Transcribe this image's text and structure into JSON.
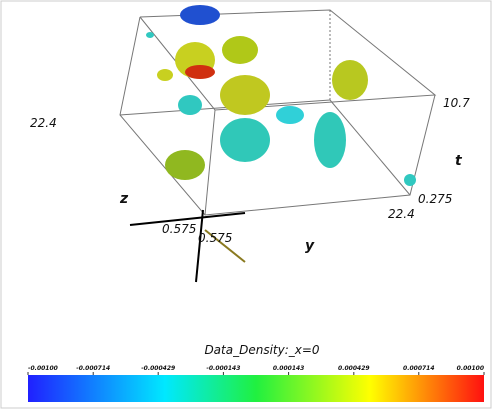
{
  "scene": {
    "labels": {
      "z_max": "22.4",
      "t_max": "10.7",
      "t_axis": "t",
      "t_min": "0.275",
      "y_max": "22.4",
      "z_axis": "z",
      "z_min": "0.575",
      "y_min": "0.575",
      "y_axis": "y"
    }
  },
  "colorbar": {
    "title": "Data_Density:_x=0",
    "lim": [
      -0.001,
      0.001
    ],
    "ticks": [
      {
        "value": -0.001,
        "label": "-0.00100"
      },
      {
        "value": -0.000714,
        "label": "-0.000714"
      },
      {
        "value": -0.000429,
        "label": "-0.000429"
      },
      {
        "value": -0.000143,
        "label": "-0.000143"
      },
      {
        "value": 0.000143,
        "label": "0.000143"
      },
      {
        "value": 0.000429,
        "label": "0.000429"
      },
      {
        "value": 0.000714,
        "label": "0.000714"
      },
      {
        "value": 0.001,
        "label": "0.00100"
      }
    ]
  }
}
